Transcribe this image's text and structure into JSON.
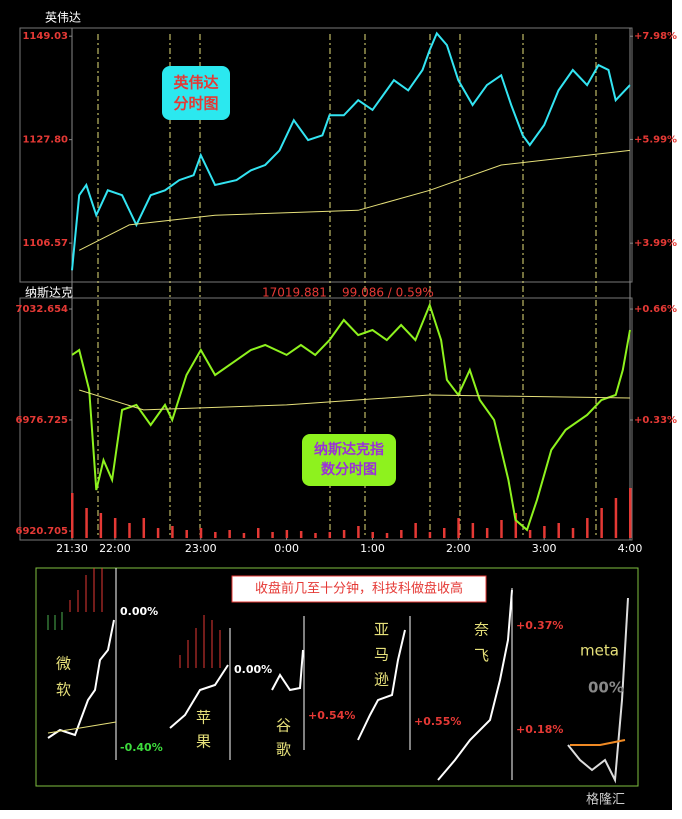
{
  "chart_data": [
    {
      "type": "line",
      "title": "英伟达",
      "annotation": [
        "英伟达",
        "分时图"
      ],
      "xlim": [
        0,
        390
      ],
      "ylim": [
        1099,
        1150.3
      ],
      "yticks": [
        1149.03,
        {
          "value": 1127.8,
          "label": "1127.80"
        },
        1106.57
      ],
      "y2lim": [
        3.28,
        8.1
      ],
      "y2ticks": [
        {
          "value": 7.98,
          "label": "+7.98%"
        },
        {
          "value": 5.99,
          "label": "+5.99%"
        },
        {
          "value": 3.99,
          "label": "+3.99%"
        }
      ],
      "series": [
        {
          "color": "#33e4f2",
          "x": [
            0,
            5,
            10,
            17,
            25,
            35,
            45,
            55,
            65,
            75,
            85,
            90,
            100,
            115,
            125,
            135,
            145,
            155,
            165,
            175,
            180,
            190,
            200,
            210,
            225,
            235,
            245,
            250,
            255,
            262,
            270,
            280,
            290,
            300,
            307,
            315,
            320,
            330,
            340,
            350,
            360,
            368,
            375,
            380,
            390
          ],
          "values": [
            1101.0,
            1116.4,
            1118.5,
            1112.3,
            1117.4,
            1116.4,
            1110.3,
            1116.4,
            1117.4,
            1119.5,
            1120.5,
            1124.6,
            1118.5,
            1119.5,
            1121.5,
            1122.6,
            1125.6,
            1131.8,
            1127.7,
            1128.7,
            1132.8,
            1132.8,
            1135.9,
            1133.9,
            1140.0,
            1137.9,
            1142.1,
            1146.2,
            1149.6,
            1147.2,
            1140.0,
            1134.9,
            1139.0,
            1141.0,
            1134.9,
            1128.7,
            1126.7,
            1130.8,
            1137.9,
            1142.1,
            1139.0,
            1143.1,
            1142.1,
            1135.9,
            1139.0
          ]
        },
        {
          "color": "#e6e07a",
          "x": [
            5,
            40,
            100,
            200,
            250,
            300,
            390
          ],
          "values": [
            1105.1,
            1110.3,
            1112.3,
            1113.3,
            1117.4,
            1122.6,
            1125.6
          ]
        }
      ]
    },
    {
      "type": "line",
      "title": "纳斯达克",
      "header_values": [
        "17019.881",
        "99.086 / 0.59%"
      ],
      "annotation": [
        "纳斯达克指",
        "数分时图"
      ],
      "xlim": [
        0,
        390
      ],
      "xticks": [
        {
          "value": 0,
          "label": "21:30"
        },
        {
          "value": 30,
          "label": "22:00"
        },
        {
          "value": 90,
          "label": "23:00"
        },
        {
          "value": 150,
          "label": "0:00"
        },
        {
          "value": 210,
          "label": "1:00"
        },
        {
          "value": 270,
          "label": "2:00"
        },
        {
          "value": 330,
          "label": "3:00"
        },
        {
          "value": 390,
          "label": "4:00"
        }
      ],
      "ylim": [
        6916.2,
        7037.2
      ],
      "yticks": [
        7032.654,
        6976.725,
        6920.705
      ],
      "y2lim": [
        -0.027,
        0.687
      ],
      "y2ticks": [
        {
          "value": 0.66,
          "label": "+0.66%"
        },
        {
          "value": 0.33,
          "label": "+0.33%"
        }
      ],
      "series": [
        {
          "color": "#8ef21e",
          "x": [
            0,
            5,
            12,
            17,
            22,
            28,
            35,
            45,
            55,
            65,
            70,
            80,
            90,
            100,
            115,
            125,
            135,
            150,
            160,
            170,
            180,
            190,
            200,
            210,
            220,
            230,
            240,
            250,
            258,
            262,
            270,
            278,
            285,
            295,
            305,
            310,
            318,
            325,
            335,
            345,
            360,
            370,
            380,
            385,
            390
          ],
          "values": [
            7009.5,
            7012.0,
            6991.8,
            6941.4,
            6956.5,
            6946.5,
            6981.8,
            6984.3,
            6974.2,
            6984.3,
            6976.7,
            6999.4,
            7012.0,
            6999.4,
            7006.9,
            7012.0,
            7014.5,
            7009.5,
            7014.5,
            7009.5,
            7017.0,
            7027.1,
            7019.5,
            7022.1,
            7017.0,
            7024.6,
            7017.0,
            7034.7,
            7017.0,
            6996.9,
            6989.3,
            7001.9,
            6986.8,
            6976.7,
            6946.5,
            6926.3,
            6921.3,
            6936.4,
            6961.6,
            6971.7,
            6979.2,
            6986.8,
            6989.3,
            7001.9,
            7022.1
          ]
        },
        {
          "color": "#e6e07a",
          "x": [
            5,
            50,
            150,
            250,
            390
          ],
          "values": [
            6991.8,
            6981.8,
            6984.3,
            6989.3,
            6987.8
          ]
        }
      ],
      "volume": {
        "color": "#e53935",
        "ylim": [
          0,
          100
        ],
        "x": [
          0,
          10,
          20,
          30,
          40,
          50,
          60,
          70,
          80,
          90,
          100,
          110,
          120,
          130,
          140,
          150,
          160,
          170,
          180,
          190,
          200,
          210,
          220,
          230,
          240,
          250,
          260,
          270,
          280,
          290,
          300,
          310,
          320,
          330,
          340,
          350,
          360,
          370,
          380,
          390
        ],
        "values": [
          45,
          30,
          25,
          20,
          15,
          20,
          10,
          12,
          8,
          10,
          6,
          8,
          5,
          10,
          6,
          8,
          7,
          5,
          6,
          8,
          12,
          6,
          5,
          8,
          15,
          6,
          10,
          20,
          15,
          10,
          18,
          25,
          8,
          12,
          15,
          10,
          20,
          30,
          40,
          50
        ]
      }
    }
  ],
  "summary_panel": {
    "banner": "收盘前几至十分钟，科技科做盘收高",
    "stocks": [
      {
        "name": [
          "微",
          "软"
        ],
        "labels": [
          "0.00%",
          "-0.40%"
        ]
      },
      {
        "name": [
          "苹",
          "果"
        ],
        "labels": [
          "0.00%"
        ]
      },
      {
        "name": [
          "谷",
          "歌"
        ],
        "labels": [
          "+0.54%"
        ]
      },
      {
        "name": [
          "亚",
          "马",
          "逊"
        ],
        "labels": [
          "+0.55%"
        ]
      },
      {
        "name": [
          "奈",
          "飞"
        ],
        "labels": [
          "+0.37%",
          "+0.18%"
        ]
      },
      {
        "name": [
          "meta"
        ],
        "labels": [
          "00%"
        ]
      }
    ],
    "watermark": "格隆汇"
  }
}
